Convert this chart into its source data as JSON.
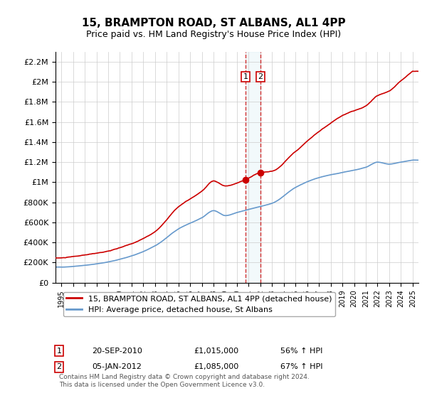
{
  "title": "15, BRAMPTON ROAD, ST ALBANS, AL1 4PP",
  "subtitle": "Price paid vs. HM Land Registry's House Price Index (HPI)",
  "red_label": "15, BRAMPTON ROAD, ST ALBANS, AL1 4PP (detached house)",
  "blue_label": "HPI: Average price, detached house, St Albans",
  "transaction1_date": "20-SEP-2010",
  "transaction1_price": "£1,015,000",
  "transaction1_hpi": "56% ↑ HPI",
  "transaction2_date": "05-JAN-2012",
  "transaction2_price": "£1,085,000",
  "transaction2_hpi": "67% ↑ HPI",
  "footnote": "Contains HM Land Registry data © Crown copyright and database right 2024.\nThis data is licensed under the Open Government Licence v3.0.",
  "background_color": "#ffffff",
  "grid_color": "#cccccc",
  "red_color": "#cc0000",
  "blue_color": "#6699cc",
  "transaction_vline1_x": 2010.72,
  "transaction_vline2_x": 2012.01,
  "ylim": [
    0,
    2300000
  ],
  "xlim_start": 1994.5,
  "xlim_end": 2025.5
}
